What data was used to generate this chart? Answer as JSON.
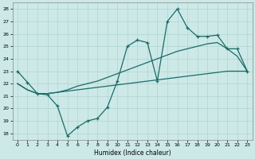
{
  "xlabel": "Humidex (Indice chaleur)",
  "xlim": [
    -0.5,
    23.5
  ],
  "ylim": [
    17.5,
    28.5
  ],
  "xticks": [
    0,
    1,
    2,
    3,
    4,
    5,
    6,
    7,
    8,
    9,
    10,
    11,
    12,
    13,
    14,
    15,
    16,
    17,
    18,
    19,
    20,
    21,
    22,
    23
  ],
  "yticks": [
    18,
    19,
    20,
    21,
    22,
    23,
    24,
    25,
    26,
    27,
    28
  ],
  "bg_color": "#cce9e7",
  "grid_color": "#aed4d2",
  "line_color": "#1a6b68",
  "curve1_x": [
    0,
    1,
    2,
    3,
    4,
    5,
    6,
    7,
    8,
    9,
    10,
    11,
    12,
    13,
    14,
    15,
    16,
    17,
    18,
    19,
    20,
    21,
    22,
    23
  ],
  "curve1_y": [
    23.0,
    22.1,
    21.2,
    21.1,
    20.2,
    17.8,
    18.5,
    19.0,
    19.2,
    20.1,
    22.2,
    25.0,
    25.5,
    25.3,
    22.2,
    27.0,
    28.0,
    26.5,
    25.8,
    25.8,
    25.9,
    24.8,
    24.8,
    23.0
  ],
  "curve2_x": [
    0,
    1,
    2,
    3,
    4,
    5,
    6,
    7,
    8,
    9,
    10,
    11,
    12,
    13,
    14,
    15,
    16,
    17,
    18,
    19,
    20,
    21,
    22,
    23
  ],
  "curve2_y": [
    22.0,
    21.5,
    21.2,
    21.2,
    21.3,
    21.4,
    21.5,
    21.6,
    21.7,
    21.8,
    21.9,
    22.0,
    22.1,
    22.2,
    22.3,
    22.4,
    22.5,
    22.6,
    22.7,
    22.8,
    22.9,
    23.0,
    23.0,
    23.0
  ],
  "curve3_x": [
    0,
    1,
    2,
    3,
    4,
    5,
    6,
    7,
    8,
    9,
    10,
    11,
    12,
    13,
    14,
    15,
    16,
    17,
    18,
    19,
    20,
    21,
    22,
    23
  ],
  "curve3_y": [
    22.0,
    21.5,
    21.2,
    21.2,
    21.3,
    21.5,
    21.8,
    22.0,
    22.2,
    22.5,
    22.8,
    23.1,
    23.4,
    23.7,
    24.0,
    24.3,
    24.6,
    24.8,
    25.0,
    25.2,
    25.3,
    24.8,
    24.2,
    23.0
  ]
}
